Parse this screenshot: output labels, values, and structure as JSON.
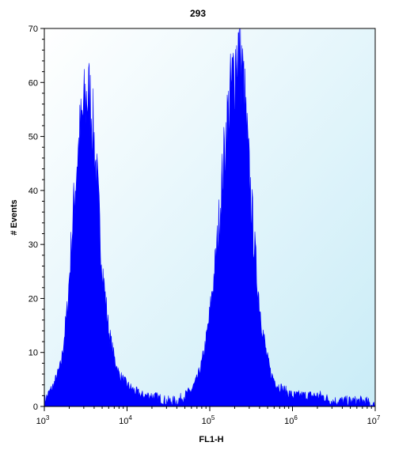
{
  "chart_data": {
    "type": "area",
    "title": "293",
    "xlabel": "FL1-H",
    "ylabel": "# Events",
    "x_scale": "log",
    "xlim": [
      1000,
      10000000
    ],
    "ylim": [
      0,
      70
    ],
    "x_ticks": [
      {
        "value": 1000,
        "base": "10",
        "exp": "3"
      },
      {
        "value": 10000,
        "base": "10",
        "exp": "4"
      },
      {
        "value": 100000,
        "base": "10",
        "exp": "5"
      },
      {
        "value": 1000000,
        "base": "10",
        "exp": "6"
      },
      {
        "value": 10000000,
        "base": "10",
        "exp": "7"
      }
    ],
    "y_ticks": [
      0,
      10,
      20,
      30,
      40,
      50,
      60,
      70
    ],
    "grid": false,
    "colors": {
      "fill": "#0000ff",
      "background_top": "#ffffff",
      "background_bottom": "#c9ecf7"
    },
    "series": [
      {
        "x": [
          1000,
          1300,
          1600,
          1900,
          2200,
          2500,
          2800,
          3100,
          3400,
          3700,
          4000,
          4400,
          4800,
          5300,
          6000,
          7000,
          8000,
          9000,
          10000,
          12000,
          15000,
          20000,
          30000,
          40000,
          50000,
          60000,
          70000,
          80000,
          90000,
          100000,
          120000,
          140000,
          160000,
          180000,
          200000,
          220000,
          240000,
          260000,
          280000,
          300000,
          330000,
          370000,
          420000,
          480000,
          550000,
          650000,
          800000,
          1000000,
          1300000,
          1700000,
          2200000,
          3000000,
          4000000,
          5500000,
          7500000,
          10000000
        ],
        "values": [
          1,
          4,
          8,
          18,
          34,
          46,
          52,
          56,
          58,
          55,
          49,
          40,
          30,
          22,
          14,
          9,
          6,
          5,
          4,
          3,
          2,
          2,
          1,
          1,
          2,
          3,
          5,
          8,
          12,
          17,
          28,
          41,
          52,
          58,
          63,
          67,
          64,
          58,
          50,
          43,
          34,
          24,
          16,
          10,
          6,
          4,
          3,
          2,
          2,
          2,
          2,
          1,
          1,
          1,
          1,
          0
        ]
      }
    ]
  }
}
